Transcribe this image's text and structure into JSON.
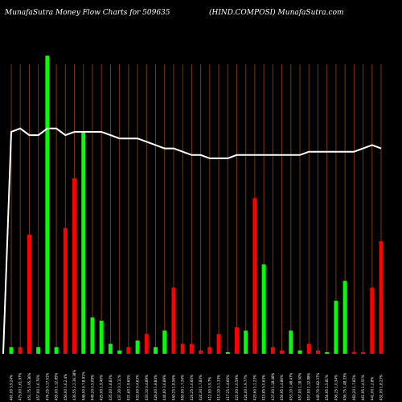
{
  "header": {
    "title_left": "MunafaSutra  Money Flow  Charts for 509635",
    "title_right": "(HIND.COMPOSI) MunafaSutra.com"
  },
  "colors": {
    "background": "#000000",
    "grid": "#7a3a00",
    "up": "#00ff00",
    "down": "#ff0000",
    "line": "#ffffff"
  },
  "chart_data": {
    "type": "bar",
    "title": "MunafaSutra  Money Flow  Charts for 509635",
    "ylim": [
      0,
      1000
    ],
    "grid": true,
    "categories": [
      "461.00 3.9.24%",
      "475.00 1.61.97%",
      "451.75 1.95.36%",
      "457.00 1.6.76%",
      "474.35 0.17.01%",
      "455.00 1.12.85%",
      "456.00 1.6.2.4%",
      "436.55 2.2.36.38%",
      "446.00 4.7.8.91%",
      "449.20 0.5.09%",
      "425.00 1.9.40%",
      "435.00 1.8.83%",
      "437.30 0.3.11%",
      "431.60 1.9.65%",
      "433.00 0.4.63%",
      "433.10 0.4.89%",
      "426.00 1.8.84%",
      "444.60 3.6.89%",
      "440.25 1.8.56%",
      "450.00 1.7.34%",
      "424.25 1.0.60%",
      "424.30 1.7.83%",
      "412.00 3.9.7%",
      "413.10 0.1.33%",
      "417.25 1.4.66%",
      "421.00 1.0.59%",
      "424.00 1.9.77%",
      "425.60 1.1.23%",
      "415.85 5.0.63%",
      "437.00 1.18.48%",
      "456.95 1.4.86%",
      "453.10 1.48.47%",
      "457.00 1.18.50%",
      "457.00 1.12.88%",
      "449.70 0.82.37%",
      "454.95 1.5.81%",
      "456.25 1.0.34%",
      "456.75 1.48.33%",
      "460.20 1.7.82%",
      "461.95 1.4.51%",
      "441.00 1.2.8%",
      "452.00 1.8.23%"
    ],
    "series": [
      {
        "values": [
          2,
          2,
          36,
          2,
          90,
          2,
          38,
          53,
          67,
          11,
          10,
          3,
          1,
          2,
          4,
          6,
          2,
          7,
          20,
          3,
          3,
          1,
          2,
          6,
          0,
          8,
          7,
          47,
          27,
          2,
          1,
          7,
          1,
          3,
          1,
          0,
          16,
          22,
          0,
          0,
          20,
          34
        ],
        "colors": [
          "g",
          "r",
          "r",
          "g",
          "g",
          "g",
          "r",
          "r",
          "g",
          "g",
          "g",
          "g",
          "g",
          "r",
          "g",
          "r",
          "g",
          "g",
          "r",
          "r",
          "r",
          "r",
          "r",
          "r",
          "g",
          "r",
          "g",
          "r",
          "g",
          "r",
          "r",
          "g",
          "g",
          "r",
          "r",
          "g",
          "g",
          "g",
          "r",
          "r",
          "r",
          "r"
        ]
      }
    ],
    "line": [
      67,
      68,
      66,
      66,
      68,
      68,
      66,
      67,
      67,
      67,
      67,
      66,
      65,
      65,
      65,
      64,
      63,
      62,
      62,
      61,
      60,
      60,
      59,
      59,
      59,
      60,
      60,
      60,
      60,
      60,
      60,
      60,
      60,
      61,
      61,
      61,
      61,
      61,
      61,
      62,
      63,
      62
    ]
  }
}
